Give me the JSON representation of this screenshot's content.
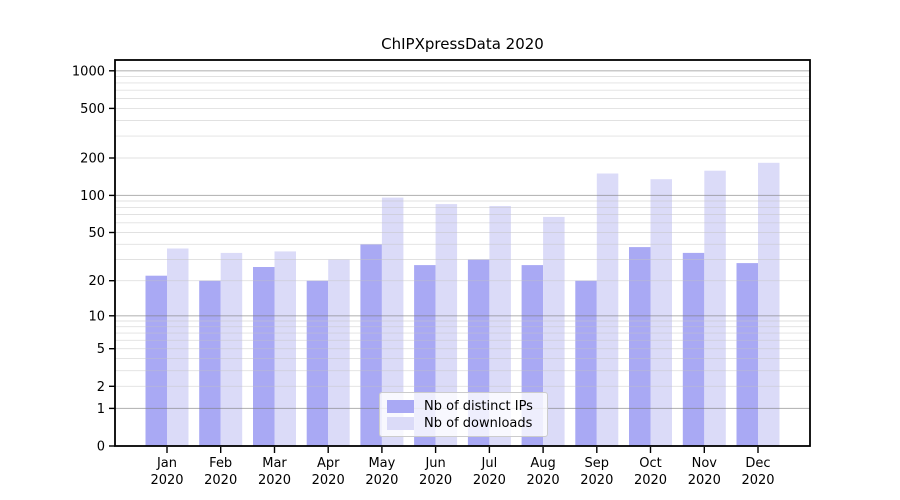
{
  "title": "ChIPXpressData 2020",
  "chart_data": {
    "type": "bar",
    "title": "ChIPXpressData 2020",
    "y_scale": "log1p",
    "ylim": [
      0,
      1221
    ],
    "yticks": [
      0,
      1,
      2,
      5,
      10,
      20,
      50,
      100,
      200,
      500,
      1000
    ],
    "major_gridlines": [
      1,
      10,
      100,
      1000
    ],
    "grid": true,
    "legend_position": "lower center inside",
    "categories": [
      "Jan",
      "Feb",
      "Mar",
      "Apr",
      "May",
      "Jun",
      "Jul",
      "Aug",
      "Sep",
      "Oct",
      "Nov",
      "Dec"
    ],
    "x_tick_second_line": "2020",
    "series": [
      {
        "name": "Nb of distinct IPs",
        "color": "#a9a9f4",
        "values": [
          22,
          20,
          26,
          20,
          40,
          27,
          30,
          27,
          20,
          38,
          34,
          28
        ]
      },
      {
        "name": "Nb of downloads",
        "color": "#dbdbf8",
        "values": [
          37,
          34,
          35,
          30,
          96,
          85,
          82,
          67,
          150,
          135,
          158,
          183
        ]
      }
    ]
  },
  "colors": {
    "axis": "#000000",
    "text": "#000000",
    "major_grid": "rgba(125,125,125,0.55)",
    "minor_grid": "rgba(195,195,195,0.5)",
    "legend_border": "#cccccc"
  }
}
